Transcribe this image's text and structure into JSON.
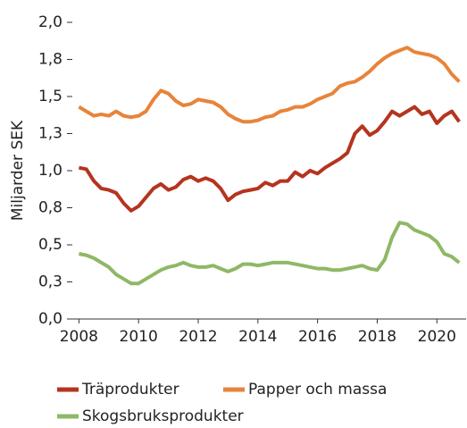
{
  "chart_data": {
    "type": "line",
    "y_label": "Miljarder SEK",
    "x": [
      2008,
      2008.25,
      2008.5,
      2008.75,
      2009,
      2009.25,
      2009.5,
      2009.75,
      2010,
      2010.25,
      2010.5,
      2010.75,
      2011,
      2011.25,
      2011.5,
      2011.75,
      2012,
      2012.25,
      2012.5,
      2012.75,
      2013,
      2013.25,
      2013.5,
      2013.75,
      2014,
      2014.25,
      2014.5,
      2014.75,
      2015,
      2015.25,
      2015.5,
      2015.75,
      2016,
      2016.25,
      2016.5,
      2016.75,
      2017,
      2017.25,
      2017.5,
      2017.75,
      2018,
      2018.25,
      2018.5,
      2018.75,
      2019,
      2019.25,
      2019.5,
      2019.75,
      2020,
      2020.25,
      2020.5,
      2020.75
    ],
    "series": [
      {
        "name": "Träprodukter",
        "color": "#b5341f",
        "values": [
          1.02,
          1.01,
          0.93,
          0.88,
          0.87,
          0.85,
          0.78,
          0.73,
          0.76,
          0.82,
          0.88,
          0.91,
          0.87,
          0.89,
          0.94,
          0.96,
          0.93,
          0.95,
          0.93,
          0.88,
          0.8,
          0.84,
          0.86,
          0.87,
          0.88,
          0.92,
          0.9,
          0.93,
          0.93,
          0.99,
          0.96,
          1.0,
          0.98,
          1.02,
          1.05,
          1.08,
          1.12,
          1.25,
          1.3,
          1.24,
          1.27,
          1.33,
          1.4,
          1.37,
          1.4,
          1.43,
          1.38,
          1.4,
          1.32,
          1.37,
          1.4,
          1.33
        ]
      },
      {
        "name": "Papper och massa",
        "color": "#e8843a",
        "values": [
          1.43,
          1.4,
          1.37,
          1.38,
          1.37,
          1.4,
          1.37,
          1.36,
          1.37,
          1.4,
          1.48,
          1.54,
          1.52,
          1.47,
          1.44,
          1.45,
          1.48,
          1.47,
          1.46,
          1.43,
          1.38,
          1.35,
          1.33,
          1.33,
          1.34,
          1.36,
          1.37,
          1.4,
          1.41,
          1.43,
          1.43,
          1.45,
          1.48,
          1.5,
          1.52,
          1.57,
          1.59,
          1.6,
          1.63,
          1.67,
          1.72,
          1.76,
          1.79,
          1.81,
          1.83,
          1.8,
          1.79,
          1.78,
          1.76,
          1.72,
          1.65,
          1.6
        ]
      },
      {
        "name": "Skogsbruksprodukter",
        "color": "#8fb866",
        "values": [
          0.44,
          0.43,
          0.41,
          0.38,
          0.35,
          0.3,
          0.27,
          0.24,
          0.24,
          0.27,
          0.3,
          0.33,
          0.35,
          0.36,
          0.38,
          0.36,
          0.35,
          0.35,
          0.36,
          0.34,
          0.32,
          0.34,
          0.37,
          0.37,
          0.36,
          0.37,
          0.38,
          0.38,
          0.38,
          0.37,
          0.36,
          0.35,
          0.34,
          0.34,
          0.33,
          0.33,
          0.34,
          0.35,
          0.36,
          0.34,
          0.33,
          0.4,
          0.55,
          0.65,
          0.64,
          0.6,
          0.58,
          0.56,
          0.52,
          0.44,
          0.42,
          0.38
        ]
      }
    ],
    "xlim": [
      2007.6,
      2020.98
    ],
    "xticks": [
      2008,
      2010,
      2012,
      2014,
      2016,
      2018,
      2020
    ],
    "ylim": [
      0,
      2
    ],
    "yticks": [
      {
        "value": 0,
        "label": "0,0"
      },
      {
        "value": 0.25,
        "label": "0,3"
      },
      {
        "value": 0.5,
        "label": "0,5"
      },
      {
        "value": 0.75,
        "label": "0,8"
      },
      {
        "value": 1,
        "label": "1,0"
      },
      {
        "value": 1.25,
        "label": "1,3"
      },
      {
        "value": 1.5,
        "label": "1,5"
      },
      {
        "value": 1.75,
        "label": "1,8"
      },
      {
        "value": 2,
        "label": "2,0"
      }
    ],
    "grid": false
  }
}
